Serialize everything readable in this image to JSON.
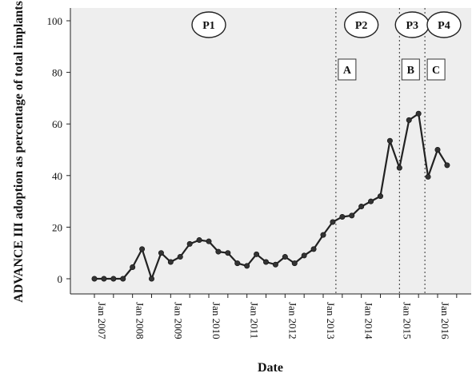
{
  "chart_data": {
    "type": "line",
    "title": "",
    "xlabel": "Date",
    "ylabel": "ADVANCE III adoption as percentage of total implants",
    "ylim": [
      0,
      105
    ],
    "yticks": [
      0,
      20,
      40,
      60,
      80,
      100
    ],
    "grid": false,
    "x_ticks": [
      "Jan 2007",
      "Jan 2008",
      "Jan 2009",
      "Jan 2010",
      "Jan 2011",
      "Jan 2012",
      "Jan 2013",
      "Jan 2014",
      "Jan 2015",
      "Jan 2016"
    ],
    "series": [
      {
        "x": [
          "2007-01",
          "2007-04",
          "2007-07",
          "2007-10",
          "2008-01",
          "2008-04",
          "2008-07",
          "2008-10",
          "2009-01",
          "2009-04",
          "2009-07",
          "2009-10",
          "2010-01",
          "2010-04",
          "2010-07",
          "2010-10",
          "2011-01",
          "2011-04",
          "2011-07",
          "2011-10",
          "2012-01",
          "2012-04",
          "2012-07",
          "2012-10",
          "2013-01",
          "2013-04",
          "2013-07",
          "2013-10",
          "2014-01",
          "2014-04",
          "2014-07",
          "2014-10",
          "2015-01",
          "2015-04",
          "2015-07",
          "2015-10",
          "2016-01",
          "2016-04"
        ],
        "values": [
          0,
          0,
          0,
          0,
          4.5,
          11.5,
          0,
          10,
          6.5,
          8.5,
          13.5,
          15,
          14.5,
          10.5,
          10,
          6,
          5,
          9.5,
          6.5,
          5.5,
          8.5,
          6,
          9,
          11.5,
          17,
          22,
          24,
          24.5,
          28,
          30,
          32,
          53.5,
          43,
          61.5,
          64,
          39.5,
          50,
          44
        ]
      }
    ],
    "reference_lines": [
      {
        "x": "2013-05",
        "label": "A"
      },
      {
        "x": "2015-01",
        "label": "B"
      },
      {
        "x": "2015-09",
        "label": "C"
      }
    ],
    "period_labels": [
      {
        "x": "2010-01",
        "label": "P1"
      },
      {
        "x": "2014-01",
        "label": "P2"
      },
      {
        "x": "2015-05",
        "label": "P3"
      },
      {
        "x": "2016-03",
        "label": "P4"
      }
    ],
    "colors": {
      "plot_background": "#eeeeee",
      "line": "#222222",
      "marker": "#333333"
    }
  }
}
